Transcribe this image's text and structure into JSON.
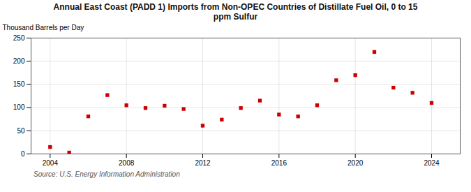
{
  "chart_data": {
    "type": "scatter",
    "title": "Annual East Coast (PADD 1) Imports from Non-OPEC Countries of Distillate Fuel Oil, 0 to 15\nppm Sulfur",
    "ylabel": "Thousand Barrels per Day",
    "source": "Source: U.S. Energy Information Administration",
    "x": [
      2004,
      2005,
      2006,
      2007,
      2008,
      2009,
      2010,
      2011,
      2012,
      2013,
      2014,
      2015,
      2016,
      2017,
      2018,
      2019,
      2020,
      2021,
      2022,
      2023,
      2024
    ],
    "values": [
      15,
      3,
      81,
      127,
      105,
      99,
      104,
      97,
      61,
      74,
      99,
      115,
      85,
      81,
      105,
      159,
      170,
      220,
      143,
      132,
      110
    ],
    "color": "#cc0000",
    "marker": "square",
    "xlim": [
      2003.0,
      2025.5
    ],
    "ylim": [
      0,
      250
    ],
    "xticks": [
      2004,
      2008,
      2012,
      2016,
      2020,
      2024
    ],
    "yticks": [
      0,
      50,
      100,
      150,
      200,
      250
    ],
    "grid": true
  }
}
